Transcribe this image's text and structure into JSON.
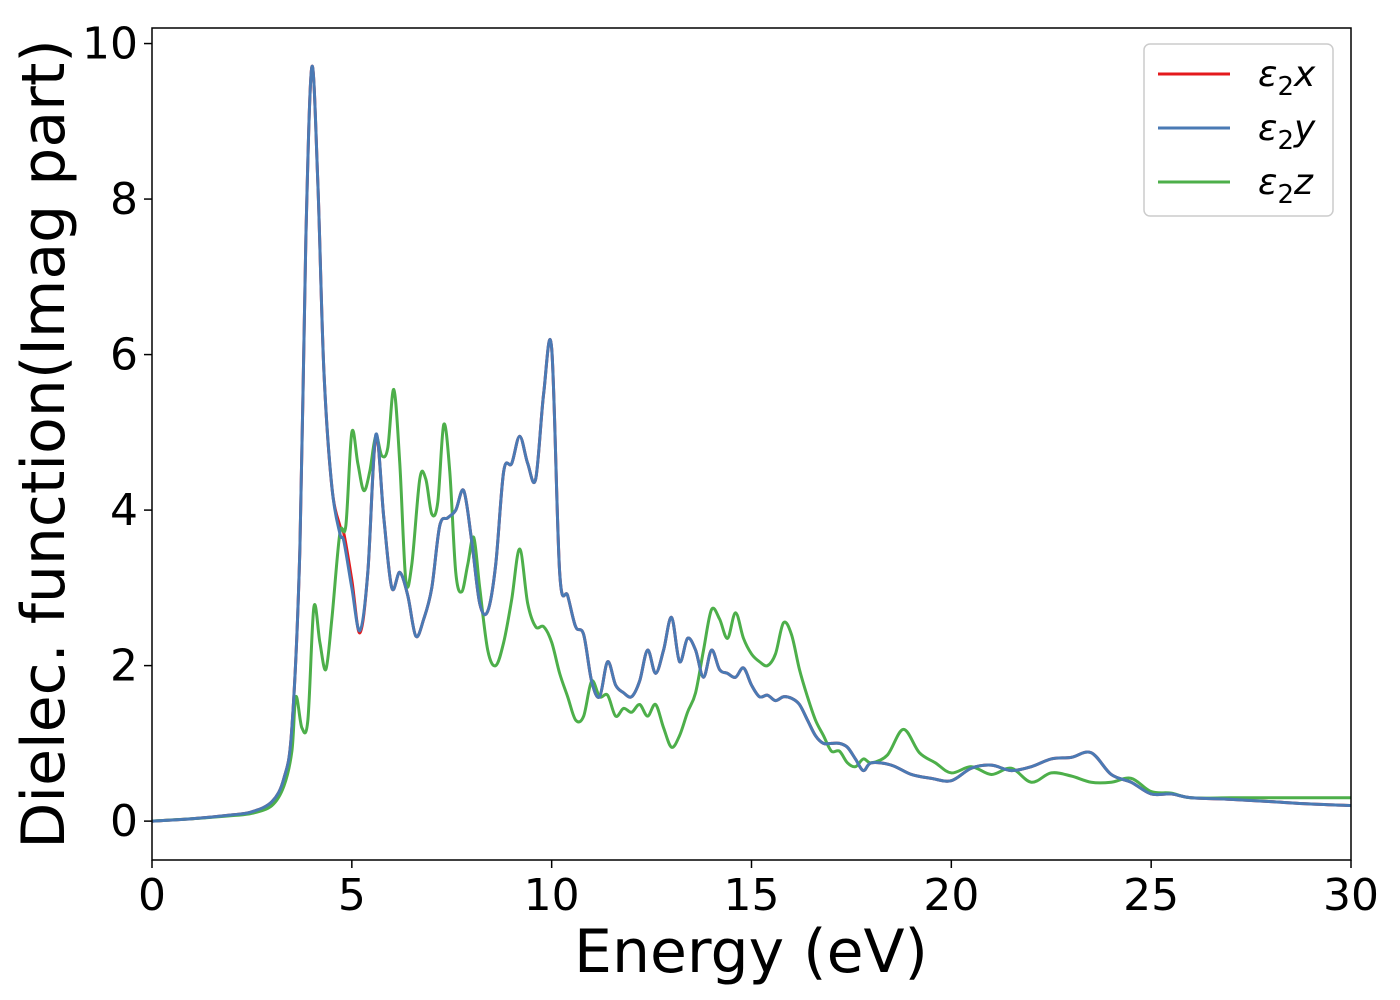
{
  "chart_data": {
    "type": "line",
    "title": "",
    "xlabel": "Energy (eV)",
    "ylabel": "Dielec. function(Imag part)",
    "xlim": [
      0,
      30
    ],
    "ylim": [
      -0.5,
      10.2
    ],
    "xticks": [
      0,
      5,
      10,
      15,
      20,
      25,
      30
    ],
    "yticks": [
      0,
      2,
      4,
      6,
      8,
      10
    ],
    "grid": false,
    "legend_position": "top-right",
    "series": [
      {
        "name": "ε₂x",
        "legend_base": "ε",
        "legend_sub": "2",
        "legend_axis": "x",
        "color": "#e41a1c",
        "x": [
          0,
          1,
          2,
          2.5,
          3,
          3.3,
          3.5,
          3.7,
          3.85,
          4.0,
          4.15,
          4.3,
          4.5,
          4.7,
          4.8,
          5.0,
          5.2,
          5.4,
          5.6,
          5.8,
          6.0,
          6.2,
          6.4,
          6.6,
          6.8,
          7.0,
          7.2,
          7.4,
          7.6,
          7.8,
          8.0,
          8.2,
          8.4,
          8.6,
          8.8,
          9.0,
          9.2,
          9.4,
          9.6,
          9.8,
          10.0,
          10.2,
          10.4,
          10.6,
          10.8,
          11.0,
          11.2,
          11.4,
          11.6,
          11.8,
          12.0,
          12.2,
          12.4,
          12.6,
          12.8,
          13.0,
          13.2,
          13.4,
          13.6,
          13.8,
          14.0,
          14.2,
          14.4,
          14.6,
          14.8,
          15.0,
          15.2,
          15.4,
          15.6,
          15.8,
          16.0,
          16.2,
          16.4,
          16.6,
          16.8,
          17.0,
          17.2,
          17.4,
          17.6,
          17.8,
          18.0,
          18.5,
          19.0,
          19.5,
          20.0,
          20.5,
          21.0,
          21.5,
          22.0,
          22.5,
          23.0,
          23.5,
          24.0,
          24.5,
          25.0,
          25.5,
          26.0,
          27.0,
          28.0,
          29.0,
          30.0
        ],
        "y": [
          0.0,
          0.03,
          0.08,
          0.12,
          0.25,
          0.55,
          1.2,
          3.5,
          7.5,
          9.7,
          8.2,
          5.8,
          4.3,
          3.8,
          3.7,
          3.1,
          2.42,
          3.2,
          4.95,
          3.9,
          3.0,
          3.2,
          2.9,
          2.38,
          2.6,
          3.0,
          3.8,
          3.9,
          4.0,
          4.25,
          3.6,
          2.8,
          2.7,
          3.3,
          4.5,
          4.6,
          4.95,
          4.6,
          4.4,
          5.5,
          6.08,
          3.2,
          2.9,
          2.5,
          2.4,
          1.8,
          1.6,
          2.05,
          1.75,
          1.65,
          1.6,
          1.8,
          2.2,
          1.9,
          2.2,
          2.62,
          2.05,
          2.35,
          2.2,
          1.85,
          2.2,
          1.95,
          1.9,
          1.85,
          1.97,
          1.75,
          1.6,
          1.62,
          1.55,
          1.6,
          1.58,
          1.5,
          1.3,
          1.1,
          1.0,
          1.0,
          1.0,
          0.95,
          0.8,
          0.65,
          0.75,
          0.72,
          0.6,
          0.55,
          0.52,
          0.68,
          0.72,
          0.65,
          0.7,
          0.8,
          0.82,
          0.88,
          0.6,
          0.5,
          0.35,
          0.35,
          0.3,
          0.28,
          0.25,
          0.22,
          0.2
        ]
      },
      {
        "name": "ε₂y",
        "legend_base": "ε",
        "legend_sub": "2",
        "legend_axis": "y",
        "color": "#4a7ab4",
        "x": [
          0,
          1,
          2,
          2.5,
          3,
          3.3,
          3.5,
          3.7,
          3.85,
          4.0,
          4.15,
          4.3,
          4.5,
          4.7,
          4.8,
          5.0,
          5.2,
          5.4,
          5.6,
          5.8,
          6.0,
          6.2,
          6.4,
          6.6,
          6.8,
          7.0,
          7.2,
          7.4,
          7.6,
          7.8,
          8.0,
          8.2,
          8.4,
          8.6,
          8.8,
          9.0,
          9.2,
          9.4,
          9.6,
          9.8,
          10.0,
          10.2,
          10.4,
          10.6,
          10.8,
          11.0,
          11.2,
          11.4,
          11.6,
          11.8,
          12.0,
          12.2,
          12.4,
          12.6,
          12.8,
          13.0,
          13.2,
          13.4,
          13.6,
          13.8,
          14.0,
          14.2,
          14.4,
          14.6,
          14.8,
          15.0,
          15.2,
          15.4,
          15.6,
          15.8,
          16.0,
          16.2,
          16.4,
          16.6,
          16.8,
          17.0,
          17.2,
          17.4,
          17.6,
          17.8,
          18.0,
          18.5,
          19.0,
          19.5,
          20.0,
          20.5,
          21.0,
          21.5,
          22.0,
          22.5,
          23.0,
          23.5,
          24.0,
          24.5,
          25.0,
          25.5,
          26.0,
          27.0,
          28.0,
          29.0,
          30.0
        ],
        "y": [
          0.0,
          0.03,
          0.08,
          0.12,
          0.25,
          0.55,
          1.2,
          3.5,
          7.5,
          9.7,
          8.2,
          5.8,
          4.3,
          3.7,
          3.6,
          3.0,
          2.45,
          3.2,
          4.97,
          3.9,
          3.0,
          3.2,
          2.9,
          2.38,
          2.6,
          3.0,
          3.8,
          3.9,
          4.0,
          4.25,
          3.6,
          2.8,
          2.7,
          3.3,
          4.5,
          4.6,
          4.95,
          4.6,
          4.4,
          5.5,
          6.08,
          3.2,
          2.9,
          2.5,
          2.4,
          1.8,
          1.6,
          2.05,
          1.75,
          1.65,
          1.6,
          1.8,
          2.2,
          1.9,
          2.2,
          2.62,
          2.05,
          2.35,
          2.2,
          1.85,
          2.2,
          1.95,
          1.9,
          1.85,
          1.97,
          1.75,
          1.6,
          1.62,
          1.55,
          1.6,
          1.58,
          1.5,
          1.3,
          1.1,
          1.0,
          1.0,
          1.0,
          0.95,
          0.8,
          0.65,
          0.75,
          0.72,
          0.6,
          0.55,
          0.52,
          0.68,
          0.72,
          0.65,
          0.7,
          0.8,
          0.82,
          0.88,
          0.6,
          0.5,
          0.35,
          0.35,
          0.3,
          0.28,
          0.25,
          0.22,
          0.2
        ]
      },
      {
        "name": "ε₂z",
        "legend_base": "ε",
        "legend_sub": "2",
        "legend_axis": "z",
        "color": "#4daf4a",
        "x": [
          0,
          1,
          2,
          2.5,
          3,
          3.3,
          3.5,
          3.6,
          3.75,
          3.9,
          4.05,
          4.2,
          4.35,
          4.5,
          4.7,
          4.85,
          5.0,
          5.15,
          5.3,
          5.45,
          5.6,
          5.75,
          5.9,
          6.05,
          6.2,
          6.35,
          6.5,
          6.7,
          6.85,
          7.0,
          7.15,
          7.3,
          7.45,
          7.6,
          7.75,
          7.9,
          8.05,
          8.2,
          8.4,
          8.6,
          8.8,
          9.0,
          9.2,
          9.4,
          9.6,
          9.8,
          10.0,
          10.2,
          10.4,
          10.6,
          10.8,
          11.0,
          11.2,
          11.4,
          11.6,
          11.8,
          12.0,
          12.2,
          12.4,
          12.6,
          12.8,
          13.0,
          13.2,
          13.4,
          13.6,
          13.8,
          14.0,
          14.2,
          14.4,
          14.6,
          14.8,
          15.0,
          15.2,
          15.4,
          15.6,
          15.8,
          16.0,
          16.2,
          16.4,
          16.6,
          16.8,
          17.0,
          17.2,
          17.4,
          17.6,
          17.8,
          18.0,
          18.4,
          18.8,
          19.2,
          19.6,
          20.0,
          20.5,
          21.0,
          21.5,
          22.0,
          22.5,
          23.0,
          23.5,
          24.0,
          24.5,
          25.0,
          25.5,
          26.0,
          27.0,
          28.0,
          29.0,
          30.0
        ],
        "y": [
          0.0,
          0.03,
          0.07,
          0.1,
          0.2,
          0.45,
          0.9,
          1.6,
          1.2,
          1.3,
          2.75,
          2.3,
          1.95,
          2.6,
          3.7,
          3.8,
          5.0,
          4.6,
          4.25,
          4.5,
          4.95,
          4.7,
          4.8,
          5.55,
          4.6,
          3.1,
          3.3,
          4.4,
          4.4,
          3.95,
          4.1,
          5.1,
          4.5,
          3.2,
          2.95,
          3.3,
          3.65,
          3.0,
          2.2,
          2.0,
          2.3,
          2.85,
          3.5,
          2.8,
          2.5,
          2.5,
          2.3,
          1.9,
          1.6,
          1.3,
          1.35,
          1.8,
          1.6,
          1.62,
          1.35,
          1.45,
          1.4,
          1.5,
          1.35,
          1.5,
          1.2,
          0.95,
          1.1,
          1.4,
          1.65,
          2.2,
          2.72,
          2.6,
          2.35,
          2.68,
          2.35,
          2.15,
          2.05,
          2.0,
          2.15,
          2.55,
          2.4,
          1.95,
          1.6,
          1.3,
          1.1,
          0.9,
          0.9,
          0.75,
          0.7,
          0.8,
          0.75,
          0.85,
          1.18,
          0.88,
          0.75,
          0.62,
          0.7,
          0.6,
          0.68,
          0.5,
          0.62,
          0.58,
          0.5,
          0.5,
          0.55,
          0.38,
          0.36,
          0.3,
          0.3,
          0.3,
          0.3,
          0.3
        ]
      }
    ]
  }
}
